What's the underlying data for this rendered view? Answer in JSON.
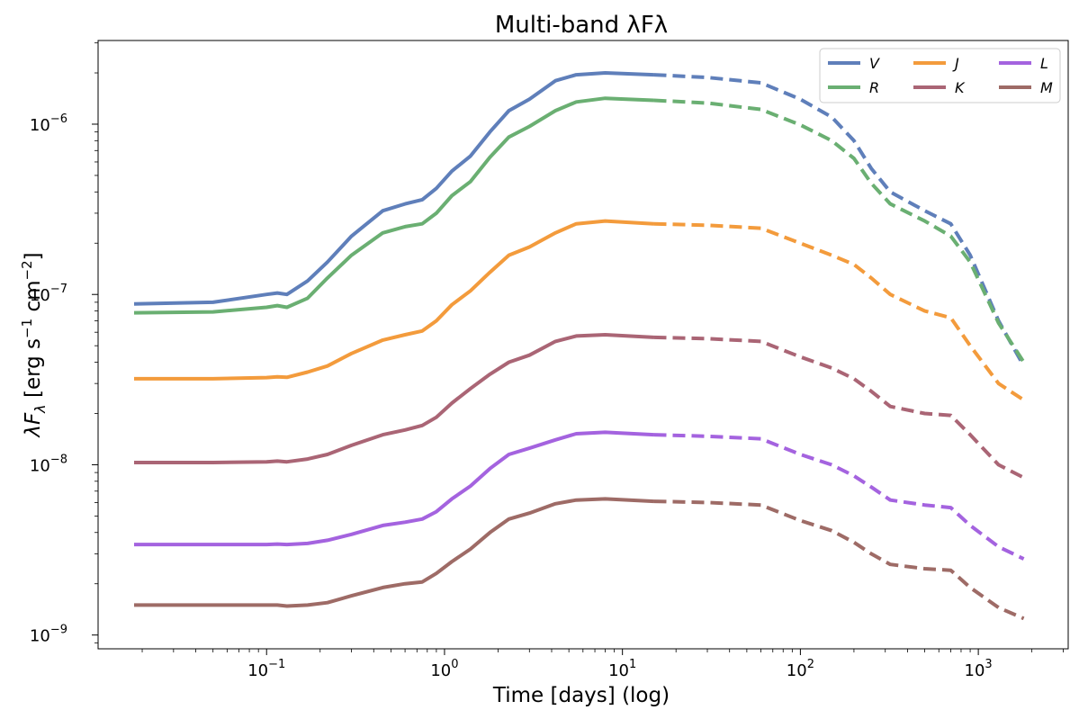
{
  "chart_data": {
    "type": "line",
    "title": "Multi-band λFλ",
    "xlabel": "Time [days] (log)",
    "ylabel": "λF_λ [erg s⁻¹ cm⁻²]",
    "xscale": "log",
    "yscale": "log",
    "xlim": [
      0.0113,
      3200
    ],
    "ylim": [
      8.3e-10,
      3.1e-06
    ],
    "xticks": [
      {
        "value": 0.1,
        "base": "10",
        "exp": "−1"
      },
      {
        "value": 1,
        "base": "10",
        "exp": "0"
      },
      {
        "value": 10,
        "base": "10",
        "exp": "1"
      },
      {
        "value": 100,
        "base": "10",
        "exp": "2"
      },
      {
        "value": 1000,
        "base": "10",
        "exp": "3"
      }
    ],
    "yticks": [
      {
        "value": 1e-09,
        "base": "10",
        "exp": "−9"
      },
      {
        "value": 1e-08,
        "base": "10",
        "exp": "−8"
      },
      {
        "value": 1e-07,
        "base": "10",
        "exp": "−7"
      },
      {
        "value": 1e-06,
        "base": "10",
        "exp": "−6"
      }
    ],
    "legend_position": "top-right",
    "solid_until_days": 15,
    "dashed_from_days": 15,
    "x": [
      0.018,
      0.05,
      0.1,
      0.115,
      0.13,
      0.17,
      0.22,
      0.3,
      0.45,
      0.6,
      0.75,
      0.9,
      1.1,
      1.4,
      1.8,
      2.3,
      3.0,
      4.2,
      5.5,
      8,
      15,
      30,
      60,
      100,
      150,
      200,
      250,
      320,
      500,
      700,
      900,
      1300,
      1800
    ],
    "series": [
      {
        "name": "V",
        "color": "#5f7fba",
        "values": [
          8.8e-08,
          9e-08,
          1e-07,
          1.02e-07,
          1e-07,
          1.2e-07,
          1.55e-07,
          2.2e-07,
          3.1e-07,
          3.4e-07,
          3.6e-07,
          4.2e-07,
          5.3e-07,
          6.5e-07,
          9e-07,
          1.2e-06,
          1.4e-06,
          1.8e-06,
          1.95e-06,
          2e-06,
          1.95e-06,
          1.88e-06,
          1.75e-06,
          1.4e-06,
          1.1e-06,
          8e-07,
          5.5e-07,
          4e-07,
          3.1e-07,
          2.6e-07,
          1.7e-07,
          7e-08,
          3.8e-08
        ]
      },
      {
        "name": "R",
        "color": "#6aaf72",
        "values": [
          7.8e-08,
          7.9e-08,
          8.4e-08,
          8.6e-08,
          8.4e-08,
          9.5e-08,
          1.25e-07,
          1.7e-07,
          2.3e-07,
          2.5e-07,
          2.6e-07,
          3e-07,
          3.8e-07,
          4.6e-07,
          6.4e-07,
          8.4e-07,
          9.7e-07,
          1.2e-06,
          1.35e-06,
          1.42e-06,
          1.38e-06,
          1.33e-06,
          1.22e-06,
          9.9e-07,
          8e-07,
          6.3e-07,
          4.5e-07,
          3.4e-07,
          2.7e-07,
          2.2e-07,
          1.55e-07,
          6.8e-08,
          4e-08
        ]
      },
      {
        "name": "J",
        "color": "#f39b3c",
        "values": [
          3.2e-08,
          3.2e-08,
          3.25e-08,
          3.28e-08,
          3.26e-08,
          3.5e-08,
          3.8e-08,
          4.5e-08,
          5.4e-08,
          5.8e-08,
          6.1e-08,
          7e-08,
          8.7e-08,
          1.05e-07,
          1.35e-07,
          1.7e-07,
          1.9e-07,
          2.3e-07,
          2.6e-07,
          2.7e-07,
          2.6e-07,
          2.55e-07,
          2.45e-07,
          2e-07,
          1.7e-07,
          1.5e-07,
          1.25e-07,
          1e-07,
          8e-08,
          7.3e-08,
          5e-08,
          3e-08,
          2.4e-08
        ]
      },
      {
        "name": "K",
        "color": "#aa6575",
        "values": [
          1.03e-08,
          1.03e-08,
          1.04e-08,
          1.05e-08,
          1.04e-08,
          1.08e-08,
          1.15e-08,
          1.3e-08,
          1.5e-08,
          1.6e-08,
          1.7e-08,
          1.9e-08,
          2.3e-08,
          2.8e-08,
          3.4e-08,
          4e-08,
          4.4e-08,
          5.3e-08,
          5.7e-08,
          5.8e-08,
          5.6e-08,
          5.5e-08,
          5.3e-08,
          4.3e-08,
          3.7e-08,
          3.2e-08,
          2.7e-08,
          2.2e-08,
          2e-08,
          1.95e-08,
          1.5e-08,
          1e-08,
          8.4e-09
        ]
      },
      {
        "name": "L",
        "color": "#a463df",
        "values": [
          3.4e-09,
          3.4e-09,
          3.4e-09,
          3.42e-09,
          3.4e-09,
          3.45e-09,
          3.6e-09,
          3.9e-09,
          4.4e-09,
          4.6e-09,
          4.8e-09,
          5.3e-09,
          6.3e-09,
          7.5e-09,
          9.5e-09,
          1.15e-08,
          1.25e-08,
          1.4e-08,
          1.52e-08,
          1.55e-08,
          1.5e-08,
          1.47e-08,
          1.42e-08,
          1.15e-08,
          1e-08,
          8.6e-09,
          7.4e-09,
          6.2e-09,
          5.8e-09,
          5.6e-09,
          4.4e-09,
          3.3e-09,
          2.8e-09
        ]
      },
      {
        "name": "M",
        "color": "#9e6b66",
        "values": [
          1.5e-09,
          1.5e-09,
          1.5e-09,
          1.5e-09,
          1.48e-09,
          1.5e-09,
          1.55e-09,
          1.7e-09,
          1.9e-09,
          2e-09,
          2.05e-09,
          2.3e-09,
          2.7e-09,
          3.2e-09,
          4e-09,
          4.8e-09,
          5.2e-09,
          5.9e-09,
          6.2e-09,
          6.3e-09,
          6.1e-09,
          6e-09,
          5.8e-09,
          4.7e-09,
          4.1e-09,
          3.5e-09,
          3e-09,
          2.6e-09,
          2.45e-09,
          2.4e-09,
          1.9e-09,
          1.45e-09,
          1.25e-09
        ]
      }
    ]
  }
}
